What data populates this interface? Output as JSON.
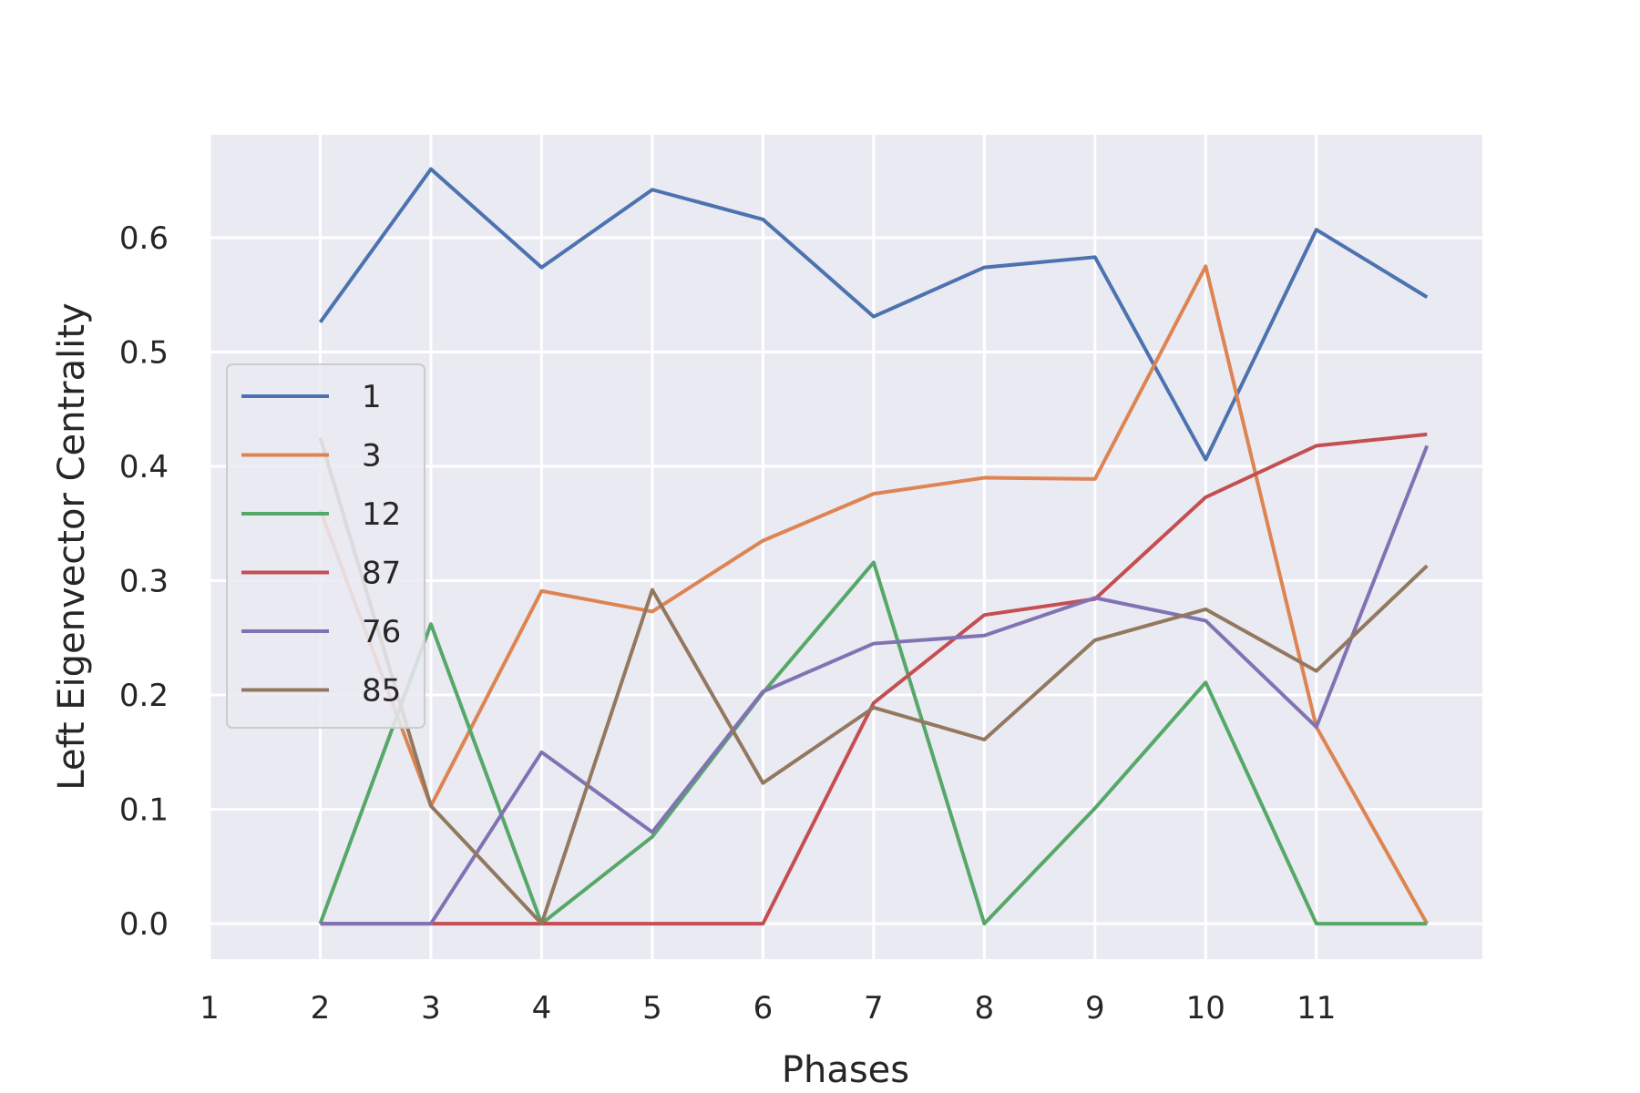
{
  "chart_data": {
    "type": "line",
    "xlabel": "Phases",
    "ylabel": "Left Eigenvector Centrality",
    "x_ticks": [
      "1",
      "2",
      "3",
      "4",
      "5",
      "6",
      "7",
      "8",
      "9",
      "10",
      "11"
    ],
    "y_ticks": [
      "0.0",
      "0.1",
      "0.2",
      "0.3",
      "0.4",
      "0.5",
      "0.6"
    ],
    "xlim": [
      0,
      11.5
    ],
    "ylim": [
      -0.031,
      0.69
    ],
    "grid": true,
    "legend_position": "center-left",
    "x": [
      1,
      2,
      3,
      4,
      5,
      6,
      7,
      8,
      9,
      10,
      11
    ],
    "series": [
      {
        "name": "1",
        "color": "#4c72b0",
        "values": [
          0.526,
          0.66,
          0.574,
          0.642,
          0.616,
          0.531,
          0.574,
          0.583,
          0.406,
          0.607,
          0.548
        ]
      },
      {
        "name": "3",
        "color": "#dd8452",
        "values": [
          0.362,
          0.103,
          0.291,
          0.273,
          0.335,
          0.376,
          0.39,
          0.389,
          0.575,
          0.172,
          0.0
        ]
      },
      {
        "name": "12",
        "color": "#55a868",
        "values": [
          0.0,
          0.262,
          0.0,
          0.076,
          0.202,
          0.316,
          0.0,
          0.101,
          0.211,
          0.0,
          0.0
        ]
      },
      {
        "name": "87",
        "color": "#c44e52",
        "values": [
          0.0,
          0.0,
          0.0,
          0.0,
          0.0,
          0.193,
          0.27,
          0.284,
          0.373,
          0.418,
          0.428
        ]
      },
      {
        "name": "76",
        "color": "#8172b3",
        "values": [
          0.0,
          0.0,
          0.15,
          0.08,
          0.203,
          0.245,
          0.252,
          0.285,
          0.265,
          0.172,
          0.418
        ]
      },
      {
        "name": "85",
        "color": "#937860",
        "values": [
          0.425,
          0.103,
          0.0,
          0.292,
          0.123,
          0.189,
          0.161,
          0.248,
          0.275,
          0.221,
          0.313
        ]
      }
    ]
  }
}
